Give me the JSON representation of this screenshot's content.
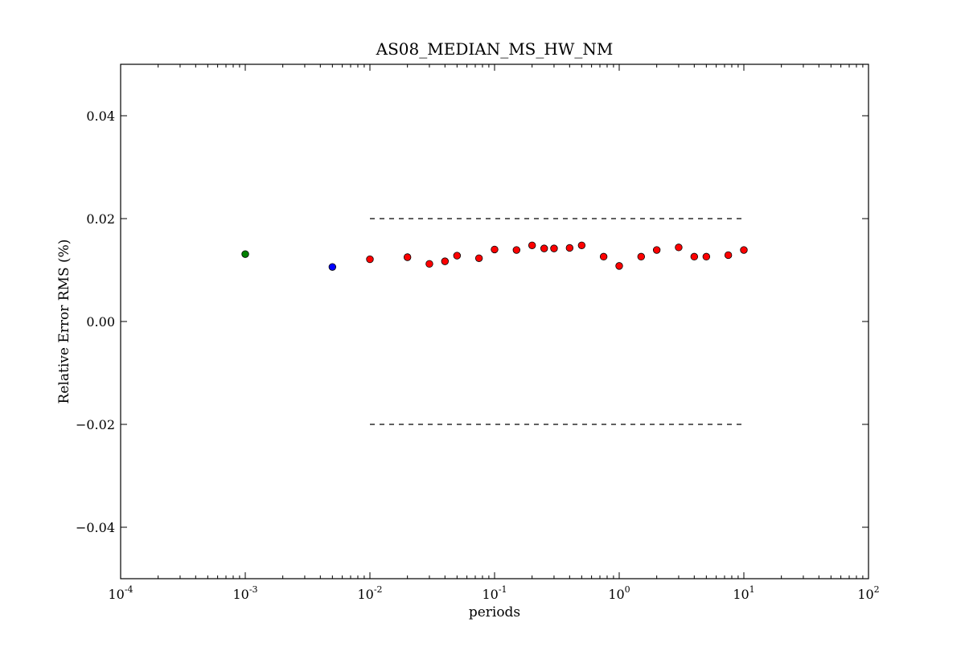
{
  "chart_data": {
    "type": "scatter",
    "title": "AS08_MEDIAN_MS_HW_NM",
    "xlabel": "periods",
    "ylabel": "Relative Error RMS (%)",
    "x_scale": "log",
    "xlim": [
      0.0001,
      100
    ],
    "ylim": [
      -0.05,
      0.05
    ],
    "x_tick_exponents": [
      -4,
      -3,
      -2,
      -1,
      0,
      1,
      2
    ],
    "y_ticks": [
      0.04,
      0.02,
      0.0,
      -0.02,
      -0.04
    ],
    "y_tick_labels": [
      "0.04",
      "0.02",
      "0.00",
      "−0.02",
      "−0.04"
    ],
    "grid": false,
    "reference_lines": [
      {
        "y": 0.02,
        "x_range": [
          0.01,
          10
        ],
        "style": "dashed",
        "color": "#000000"
      },
      {
        "y": -0.02,
        "x_range": [
          0.01,
          10
        ],
        "style": "dashed",
        "color": "#000000"
      }
    ],
    "series": [
      {
        "color": "#008000",
        "points": [
          {
            "x": 0.001,
            "y": 0.0131
          }
        ]
      },
      {
        "color": "#0000ff",
        "points": [
          {
            "x": 0.005,
            "y": 0.0106
          }
        ]
      },
      {
        "color": "#ff0000",
        "points": [
          {
            "x": 0.01,
            "y": 0.0121
          },
          {
            "x": 0.02,
            "y": 0.0125
          },
          {
            "x": 0.03,
            "y": 0.0112
          },
          {
            "x": 0.04,
            "y": 0.0117
          },
          {
            "x": 0.05,
            "y": 0.0128
          },
          {
            "x": 0.075,
            "y": 0.0123
          },
          {
            "x": 0.1,
            "y": 0.014
          },
          {
            "x": 0.15,
            "y": 0.0139
          },
          {
            "x": 0.2,
            "y": 0.0148
          },
          {
            "x": 0.25,
            "y": 0.0142
          },
          {
            "x": 0.3,
            "y": 0.0142
          },
          {
            "x": 0.4,
            "y": 0.0143
          },
          {
            "x": 0.5,
            "y": 0.0148
          },
          {
            "x": 0.75,
            "y": 0.0126
          },
          {
            "x": 1.0,
            "y": 0.0108
          },
          {
            "x": 1.5,
            "y": 0.0126
          },
          {
            "x": 2.0,
            "y": 0.0139
          },
          {
            "x": 3.0,
            "y": 0.0144
          },
          {
            "x": 4.0,
            "y": 0.0126
          },
          {
            "x": 5.0,
            "y": 0.0126
          },
          {
            "x": 7.5,
            "y": 0.0129
          },
          {
            "x": 10.0,
            "y": 0.0139
          }
        ]
      }
    ]
  }
}
